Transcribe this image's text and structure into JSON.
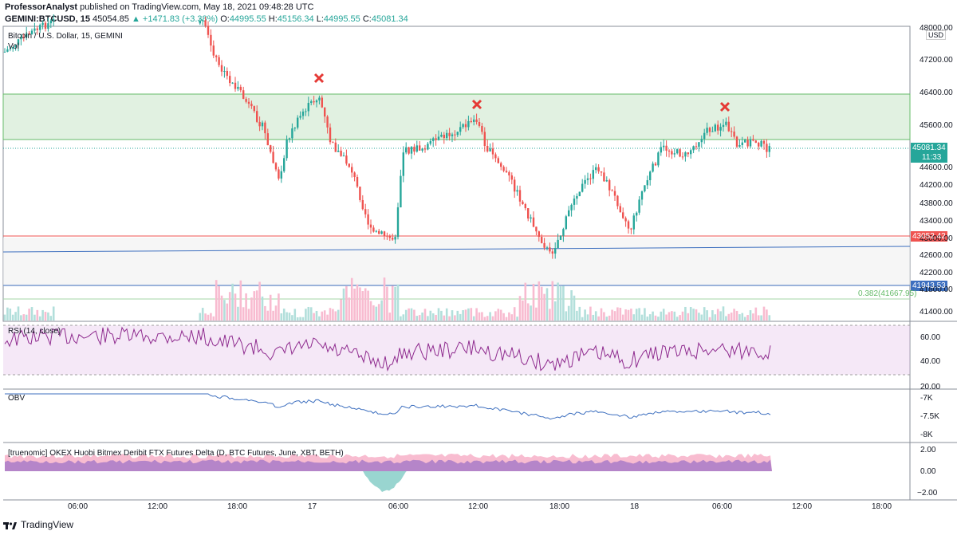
{
  "header": {
    "author": "ProfessorAnalyst",
    "published": "published on TradingView.com, May 18, 2021 09:48:28 UTC",
    "symbol": "GEMINI:BTCUSD, 15",
    "price": "45054.85",
    "change": "▲ +1471.83 (+3.38%)",
    "o_label": "O:",
    "o": "44995.55",
    "h_label": "H:",
    "h": "45156.34",
    "l_label": "L:",
    "l": "44995.55",
    "c_label": "C:",
    "c": "45081.34"
  },
  "main_pane": {
    "legend": "Bitcoin / U.S. Dollar, 15, GEMINI",
    "vol_label": "Vol",
    "currency": "USD",
    "price_ticks": [
      "48000.00",
      "47200.00",
      "46400.00",
      "45600.00",
      "45081.34",
      "44600.00",
      "44200.00",
      "43800.00",
      "43400.00",
      "43000.00",
      "42600.00",
      "42200.00",
      "41800.00",
      "41400.00"
    ],
    "current_price_tag": "45081.34",
    "countdown_tag": "11:33",
    "red_line_tag": "43052.42",
    "blue_line_tag": "41943.53",
    "fib_label": "0.382(41667.95)"
  },
  "rsi_pane": {
    "label": "RSI (14, close)",
    "ticks": [
      "60.00",
      "40.00",
      "20.00"
    ]
  },
  "obv_pane": {
    "label": "OBV",
    "ticks": [
      "-7K",
      "-7.5K",
      "-8K"
    ]
  },
  "delta_pane": {
    "label": "[truenomic] OKEX Huobi Bitmex Deribit FTX Futures Delta (D, BTC Futures, June, XBT, BETH)",
    "ticks": [
      "2.00",
      "0.00",
      "−2.00"
    ]
  },
  "time_axis": [
    "06:00",
    "12:00",
    "18:00",
    "17",
    "06:00",
    "12:00",
    "18:00",
    "18",
    "06:00",
    "12:00",
    "18:00"
  ],
  "colors": {
    "up": "#26a69a",
    "down": "#ef5350",
    "zone": "#c8e6c9",
    "rsi": "#8e2a8e",
    "obv": "#3d6fbf"
  },
  "footer": {
    "brand": "TradingView"
  }
}
